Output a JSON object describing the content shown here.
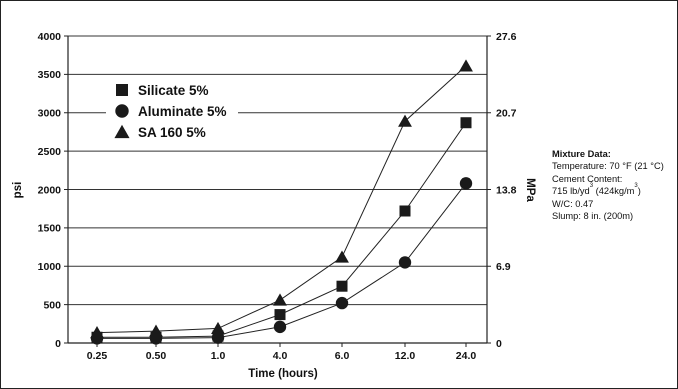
{
  "chart_data": {
    "type": "line",
    "categories": [
      "0.25",
      "0.50",
      "1.0",
      "4.0",
      "6.0",
      "12.0",
      "24.0"
    ],
    "xlabel": "Time (hours)",
    "ylabel": "psi",
    "ylabel_right": "MPa",
    "ylim": [
      0,
      4000
    ],
    "yticks": [
      "0",
      "500",
      "1000",
      "1500",
      "2000",
      "2500",
      "3000",
      "3500",
      "4000"
    ],
    "yticks_right": [
      "0",
      "6.9",
      "13.8",
      "20.7",
      "27.6"
    ],
    "grid": "horizontal",
    "legend_position": "top-left",
    "series": [
      {
        "name": "Silicate 5%",
        "marker": "square",
        "values": [
          75,
          75,
          90,
          370,
          740,
          1720,
          2870
        ]
      },
      {
        "name": "Aluminate 5%",
        "marker": "circle",
        "values": [
          60,
          60,
          70,
          210,
          520,
          1050,
          2080
        ]
      },
      {
        "name": "SA 160 5%",
        "marker": "triangle",
        "values": [
          135,
          155,
          190,
          560,
          1120,
          2890,
          3610
        ]
      }
    ]
  },
  "mixture": {
    "title": "Mixture Data:",
    "temperature": "Temperature: 70 °F (21 °C)",
    "cement_label": "Cement Content:",
    "cement_a": "715 lb/yd",
    "cement_b": "3",
    "cement_c": " (424kg/m",
    "cement_d": "3",
    "cement_e": ")",
    "wc": "W/C: 0.47",
    "slump": "Slump: 8 in. (200m)"
  }
}
